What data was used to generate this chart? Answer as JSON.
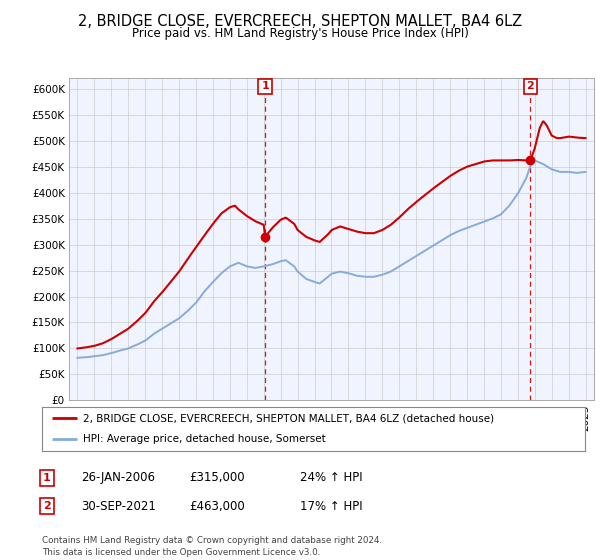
{
  "title": "2, BRIDGE CLOSE, EVERCREECH, SHEPTON MALLET, BA4 6LZ",
  "subtitle": "Price paid vs. HM Land Registry's House Price Index (HPI)",
  "legend_line1": "2, BRIDGE CLOSE, EVERCREECH, SHEPTON MALLET, BA4 6LZ (detached house)",
  "legend_line2": "HPI: Average price, detached house, Somerset",
  "sale1_date": "26-JAN-2006",
  "sale1_price": 315000,
  "sale1_hpi": "24% ↑ HPI",
  "sale2_date": "30-SEP-2021",
  "sale2_price": 463000,
  "sale2_hpi": "17% ↑ HPI",
  "footer": "Contains HM Land Registry data © Crown copyright and database right 2024.\nThis data is licensed under the Open Government Licence v3.0.",
  "red_color": "#cc0000",
  "blue_color": "#88aadd",
  "sale1_x": 2006.08,
  "sale2_x": 2021.75,
  "xmin": 1994.5,
  "xmax": 2025.5,
  "ylim": [
    0,
    620000
  ],
  "yticks": [
    0,
    50000,
    100000,
    150000,
    200000,
    250000,
    300000,
    350000,
    400000,
    450000,
    500000,
    550000,
    600000
  ],
  "ytick_labels": [
    "£0",
    "£50K",
    "£100K",
    "£150K",
    "£200K",
    "£250K",
    "£300K",
    "£350K",
    "£400K",
    "£450K",
    "£500K",
    "£550K",
    "£600K"
  ],
  "bg_color": "#f0f4ff"
}
